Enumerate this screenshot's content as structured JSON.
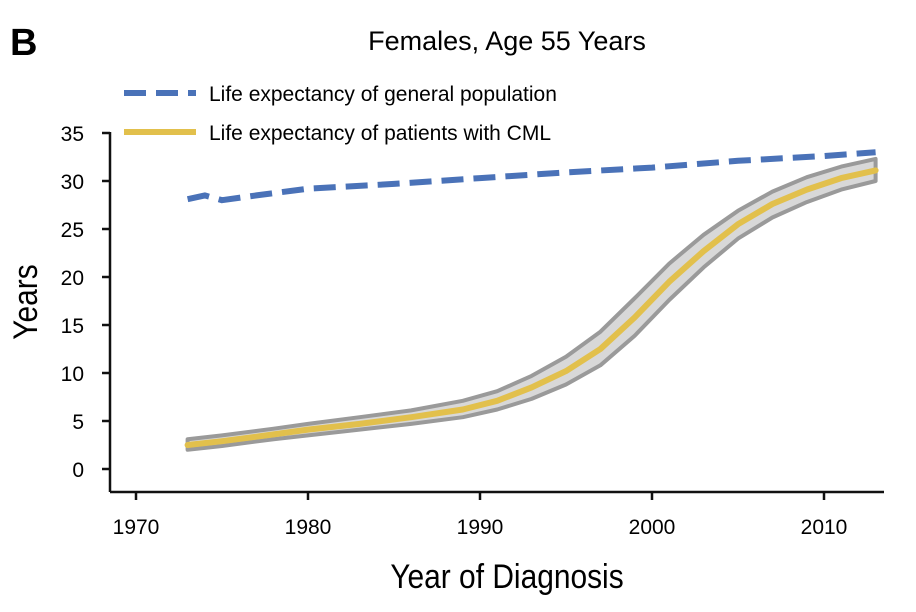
{
  "chart_data": {
    "type": "line",
    "panel_label": "B",
    "title": "Females, Age 55 Years",
    "xlabel": "Year of Diagnosis",
    "ylabel": "Years",
    "xlim": [
      1969,
      2013
    ],
    "ylim": [
      -2,
      36
    ],
    "xticks": [
      1970,
      1980,
      1990,
      2000,
      2010
    ],
    "yticks": [
      0,
      5,
      10,
      15,
      20,
      25,
      30,
      35
    ],
    "grid": false,
    "legend_position": "top-left",
    "series": [
      {
        "name": "Life expectancy of general population",
        "color": "#4a72b8",
        "style": "dashed",
        "x": [
          1973,
          1974,
          1975,
          1977,
          1980,
          1985,
          1990,
          1995,
          2000,
          2005,
          2010,
          2013
        ],
        "y": [
          28.1,
          28.5,
          28.0,
          28.5,
          29.2,
          29.7,
          30.3,
          30.9,
          31.4,
          32.1,
          32.6,
          33.0
        ]
      },
      {
        "name": "Life expectancy of patients with CML",
        "color": "#e2c04c",
        "style": "solid",
        "band_color": "#d8d8d8",
        "band_edge_color": "#9a9a9a",
        "x": [
          1973,
          1975,
          1978,
          1980,
          1983,
          1986,
          1989,
          1991,
          1993,
          1995,
          1997,
          1999,
          2001,
          2003,
          2005,
          2007,
          2009,
          2011,
          2013
        ],
        "y": [
          2.5,
          2.9,
          3.6,
          4.1,
          4.7,
          5.4,
          6.2,
          7.1,
          8.5,
          10.2,
          12.5,
          15.8,
          19.5,
          22.7,
          25.5,
          27.6,
          29.1,
          30.3,
          31.1
        ],
        "lower": [
          2.0,
          2.4,
          3.1,
          3.5,
          4.1,
          4.7,
          5.4,
          6.2,
          7.3,
          8.8,
          10.8,
          13.9,
          17.6,
          21.0,
          24.0,
          26.2,
          27.8,
          29.1,
          30.0
        ],
        "upper": [
          3.1,
          3.5,
          4.2,
          4.7,
          5.4,
          6.1,
          7.1,
          8.1,
          9.7,
          11.7,
          14.3,
          17.8,
          21.4,
          24.4,
          26.9,
          28.9,
          30.4,
          31.5,
          32.3
        ]
      }
    ]
  }
}
